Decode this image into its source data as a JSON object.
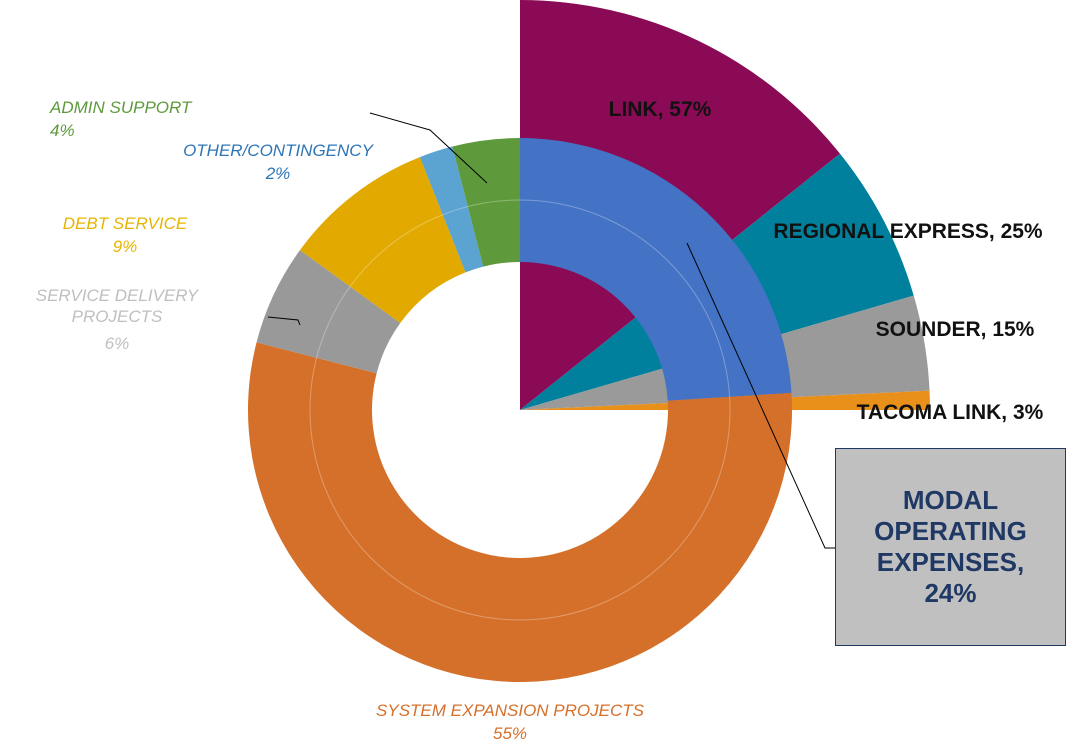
{
  "chart_data": [
    {
      "type": "donut",
      "categories": [
        "MODAL OPERATING EXPENSES,",
        "SYSTEM EXPANSION PROJECTS",
        "SERVICE DELIVERY PROJECTS",
        "DEBT SERVICE",
        "OTHER/CONTINGENCY",
        "ADMIN SUPPORT"
      ],
      "values": [
        24,
        55,
        6,
        9,
        2,
        4
      ],
      "value_labels": [
        "24%",
        "55%",
        "6%",
        "9%",
        "2%",
        "4%"
      ],
      "colors": [
        "#4472c4",
        "#d4702a",
        "#999999",
        "#e2a900",
        "#5ba3d0",
        "#5e9a3c"
      ]
    },
    {
      "type": "pie",
      "labels": [
        "LINK, 57%",
        "REGIONAL EXPRESS, 25%",
        "SOUNDER, 15%",
        "TACOMA LINK, 3%"
      ],
      "values": [
        57,
        25,
        15,
        3
      ],
      "colors": [
        "#8b0a55",
        "#00809c",
        "#9a9a9a",
        "#e8901a"
      ]
    }
  ]
}
